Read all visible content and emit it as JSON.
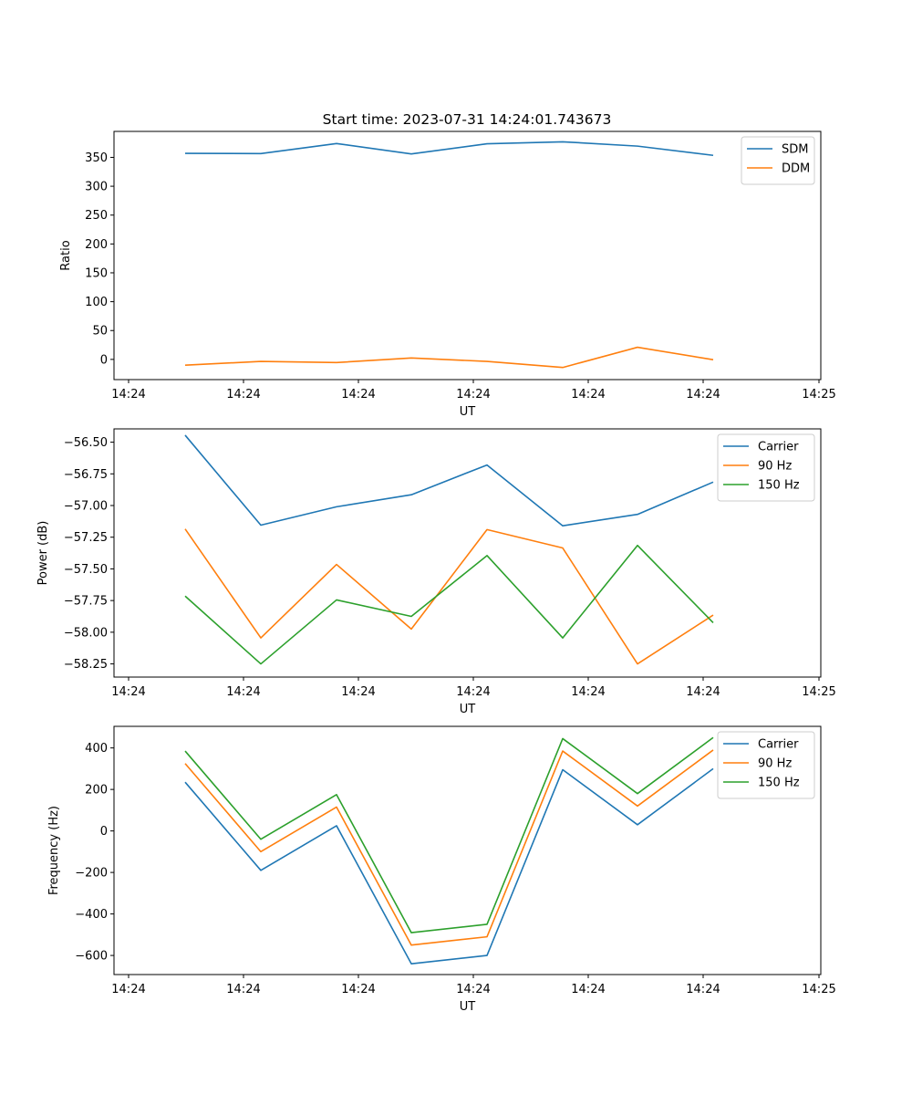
{
  "title": "Start time: 2023-07-31 14:24:01.743673",
  "chart_data": [
    {
      "type": "line",
      "xlabel": "UT",
      "ylabel": "Ratio",
      "x_tick_labels": [
        "14:24",
        "14:24",
        "14:24",
        "14:24",
        "14:24",
        "14:24",
        "14:24",
        "14:25"
      ],
      "y_ticks": [
        0,
        50,
        100,
        150,
        200,
        250,
        300,
        350
      ],
      "ylim": [
        -35,
        395
      ],
      "legend": "upper right",
      "series": [
        {
          "name": "SDM",
          "color": "#1f77b4",
          "values": [
            357,
            356.5,
            374,
            356,
            373.5,
            377,
            369.5,
            353.5
          ]
        },
        {
          "name": "DDM",
          "color": "#ff7f0e",
          "values": [
            -10,
            -3.5,
            -5.5,
            2.5,
            -3.5,
            -14,
            21,
            -0.5
          ]
        }
      ]
    },
    {
      "type": "line",
      "xlabel": "UT",
      "ylabel": "Power (dB)",
      "x_tick_labels": [
        "14:24",
        "14:24",
        "14:24",
        "14:24",
        "14:24",
        "14:24",
        "14:24",
        "14:25"
      ],
      "y_ticks": [
        -58.25,
        -58.0,
        -57.75,
        -57.5,
        -57.25,
        -57.0,
        -56.75,
        -56.5
      ],
      "y_tick_labels": [
        "−58.25",
        "−58.00",
        "−57.75",
        "−57.50",
        "−57.25",
        "−57.00",
        "−56.75",
        "−56.50"
      ],
      "ylim": [
        -58.354,
        -56.395
      ],
      "legend": "upper right",
      "series": [
        {
          "name": "Carrier",
          "color": "#1f77b4",
          "values": [
            -56.445,
            -57.155,
            -57.01,
            -56.915,
            -56.68,
            -57.16,
            -57.07,
            -56.815
          ]
        },
        {
          "name": "90 Hz",
          "color": "#ff7f0e",
          "values": [
            -57.185,
            -58.045,
            -57.465,
            -57.975,
            -57.19,
            -57.335,
            -58.25,
            -57.865
          ]
        },
        {
          "name": "150 Hz",
          "color": "#2ca02c",
          "values": [
            -57.715,
            -58.25,
            -57.745,
            -57.875,
            -57.395,
            -58.045,
            -57.315,
            -57.925
          ]
        }
      ]
    },
    {
      "type": "line",
      "xlabel": "UT",
      "ylabel": "Frequency (Hz)",
      "x_tick_labels": [
        "14:24",
        "14:24",
        "14:24",
        "14:24",
        "14:24",
        "14:24",
        "14:24",
        "14:25"
      ],
      "y_ticks": [
        -600,
        -400,
        -200,
        0,
        200,
        400
      ],
      "y_tick_labels": [
        "−600",
        "−400",
        "−200",
        "0",
        "200",
        "400"
      ],
      "ylim": [
        -692,
        504
      ],
      "legend": "upper right",
      "series": [
        {
          "name": "Carrier",
          "color": "#1f77b4",
          "values": [
            235,
            -190,
            25,
            -640,
            -600,
            295,
            30,
            300
          ]
        },
        {
          "name": "90 Hz",
          "color": "#ff7f0e",
          "values": [
            325,
            -100,
            115,
            -550,
            -510,
            385,
            120,
            390
          ]
        },
        {
          "name": "150 Hz",
          "color": "#2ca02c",
          "values": [
            385,
            -40,
            175,
            -490,
            -450,
            445,
            180,
            450
          ]
        }
      ]
    }
  ]
}
